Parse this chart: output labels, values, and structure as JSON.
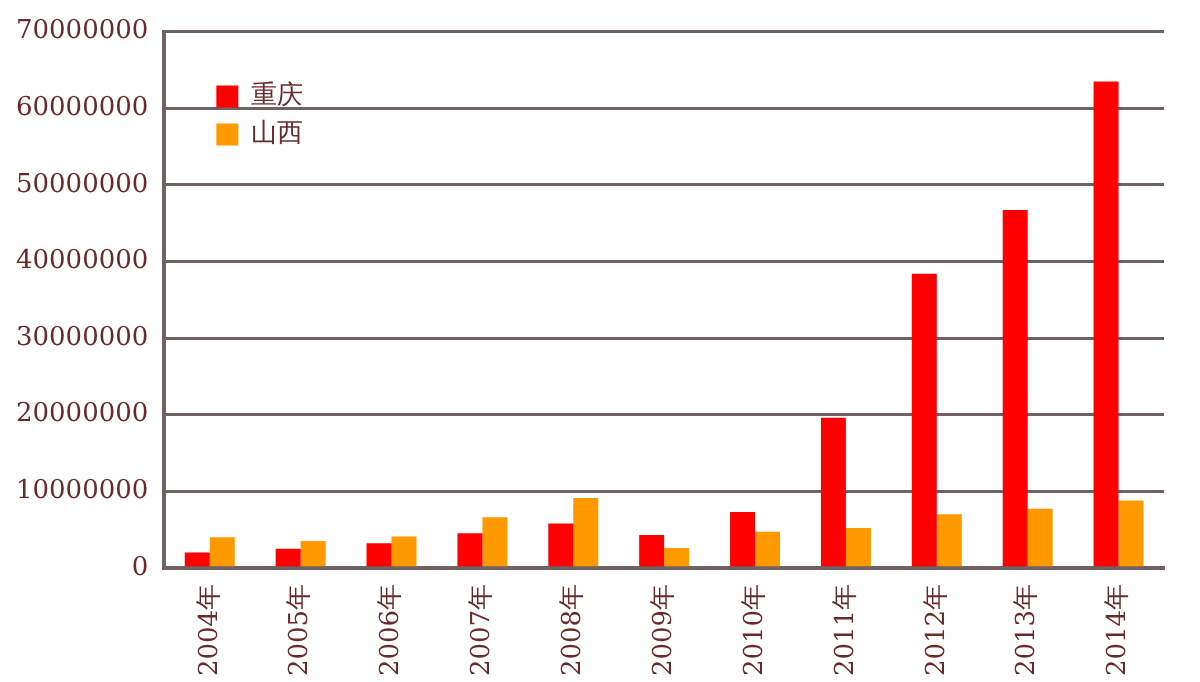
{
  "chart_data": {
    "type": "bar",
    "categories": [
      "2004年",
      "2005年",
      "2006年",
      "2007年",
      "2008年",
      "2009年",
      "2010年",
      "2011年",
      "2012年",
      "2013年",
      "2014年"
    ],
    "series": [
      {
        "name": "重庆",
        "color": "#ff0000",
        "values": [
          2000000,
          2500000,
          3200000,
          4500000,
          5800000,
          4300000,
          7300000,
          19600000,
          38400000,
          46700000,
          63500000
        ]
      },
      {
        "name": "山西",
        "color": "#ff9900",
        "values": [
          4000000,
          3500000,
          4100000,
          6600000,
          9100000,
          2600000,
          4700000,
          5200000,
          7000000,
          7700000,
          8800000
        ]
      }
    ],
    "ylim": [
      0,
      70000000
    ],
    "yticks": [
      0,
      10000000,
      20000000,
      30000000,
      40000000,
      50000000,
      60000000,
      70000000
    ],
    "grid": "y",
    "legend": "top left"
  }
}
